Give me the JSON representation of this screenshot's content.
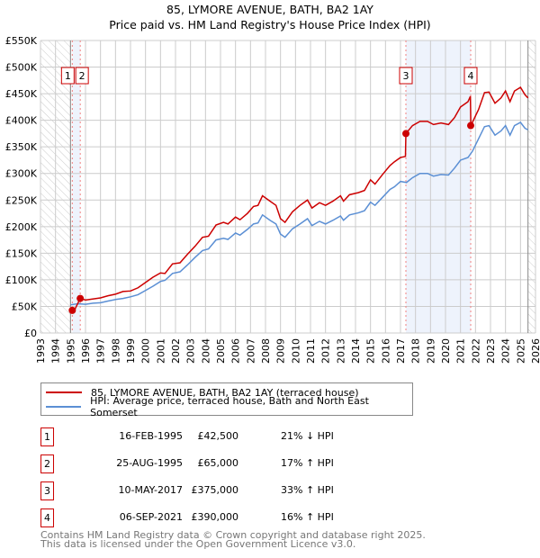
{
  "chart_data": {
    "type": "line",
    "title": "85, LYMORE AVENUE, BATH, BA2 1AY",
    "subtitle": "Price paid vs. HM Land Registry's House Price Index (HPI)",
    "xlim": [
      1993,
      2026
    ],
    "ylim": [
      0,
      550000
    ],
    "x_ticks": [
      "1993",
      "1994",
      "1995",
      "1996",
      "1997",
      "1998",
      "1999",
      "2000",
      "2001",
      "2002",
      "2003",
      "2004",
      "2005",
      "2006",
      "2007",
      "2008",
      "2009",
      "2010",
      "2011",
      "2012",
      "2013",
      "2014",
      "2015",
      "2016",
      "2017",
      "2018",
      "2019",
      "2020",
      "2021",
      "2022",
      "2023",
      "2024",
      "2025",
      "2026"
    ],
    "y_ticks": [
      "£0",
      "£50K",
      "£100K",
      "£150K",
      "£200K",
      "£250K",
      "£300K",
      "£350K",
      "£400K",
      "£450K",
      "£500K",
      "£550K"
    ],
    "grid": true,
    "series": [
      {
        "name": "85, LYMORE AVENUE, BATH, BA2 1AY (terraced house)",
        "color": "#cc0000",
        "unit": "thousand GBP",
        "points": [
          [
            1995.12,
            42.5
          ],
          [
            1995.3,
            45
          ],
          [
            1995.65,
            65
          ],
          [
            1996,
            62
          ],
          [
            1997,
            66
          ],
          [
            1997.5,
            70
          ],
          [
            1998,
            73
          ],
          [
            1998.5,
            78
          ],
          [
            1999,
            79
          ],
          [
            1999.5,
            85
          ],
          [
            2000,
            95
          ],
          [
            2000.5,
            105
          ],
          [
            2001,
            113
          ],
          [
            2001.3,
            112
          ],
          [
            2001.8,
            130
          ],
          [
            2002.3,
            132
          ],
          [
            2002.8,
            148
          ],
          [
            2003.3,
            163
          ],
          [
            2003.8,
            180
          ],
          [
            2004.2,
            182
          ],
          [
            2004.7,
            203
          ],
          [
            2005.2,
            208
          ],
          [
            2005.5,
            205
          ],
          [
            2006,
            218
          ],
          [
            2006.3,
            213
          ],
          [
            2006.8,
            225
          ],
          [
            2007.2,
            238
          ],
          [
            2007.5,
            240
          ],
          [
            2007.8,
            258
          ],
          [
            2008.3,
            248
          ],
          [
            2008.7,
            240
          ],
          [
            2009.0,
            215
          ],
          [
            2009.3,
            208
          ],
          [
            2009.8,
            228
          ],
          [
            2010.3,
            240
          ],
          [
            2010.8,
            250
          ],
          [
            2011.1,
            235
          ],
          [
            2011.6,
            245
          ],
          [
            2012.0,
            240
          ],
          [
            2012.5,
            248
          ],
          [
            2013,
            258
          ],
          [
            2013.2,
            248
          ],
          [
            2013.6,
            260
          ],
          [
            2014.2,
            264
          ],
          [
            2014.6,
            268
          ],
          [
            2015,
            288
          ],
          [
            2015.3,
            280
          ],
          [
            2015.8,
            298
          ],
          [
            2016.3,
            315
          ],
          [
            2016.6,
            322
          ],
          [
            2017.0,
            330
          ],
          [
            2017.33,
            332
          ],
          [
            2017.36,
            375
          ],
          [
            2017.8,
            390
          ],
          [
            2018.3,
            398
          ],
          [
            2018.8,
            398
          ],
          [
            2019.2,
            392
          ],
          [
            2019.7,
            395
          ],
          [
            2020.2,
            392
          ],
          [
            2020.6,
            405
          ],
          [
            2021,
            425
          ],
          [
            2021.5,
            435
          ],
          [
            2021.66,
            445
          ],
          [
            2021.69,
            390
          ],
          [
            2022.2,
            420
          ],
          [
            2022.6,
            452
          ],
          [
            2022.9,
            453
          ],
          [
            2023.3,
            432
          ],
          [
            2023.7,
            442
          ],
          [
            2024,
            455
          ],
          [
            2024.3,
            435
          ],
          [
            2024.6,
            455
          ],
          [
            2025,
            462
          ],
          [
            2025.3,
            448
          ],
          [
            2025.5,
            442
          ]
        ]
      },
      {
        "name": "HPI: Average price, terraced house, Bath and North East Somerset",
        "color": "#5b8fd4",
        "unit": "thousand GBP",
        "points": [
          [
            1995.0,
            53
          ],
          [
            1995.5,
            55
          ],
          [
            1996,
            54
          ],
          [
            1996.5,
            56
          ],
          [
            1997,
            57
          ],
          [
            1997.5,
            60
          ],
          [
            1998,
            63
          ],
          [
            1998.5,
            65
          ],
          [
            1999,
            68
          ],
          [
            1999.5,
            72
          ],
          [
            2000,
            80
          ],
          [
            2000.5,
            88
          ],
          [
            2001,
            97
          ],
          [
            2001.3,
            99
          ],
          [
            2001.8,
            112
          ],
          [
            2002.3,
            115
          ],
          [
            2002.8,
            128
          ],
          [
            2003.3,
            142
          ],
          [
            2003.8,
            155
          ],
          [
            2004.2,
            158
          ],
          [
            2004.7,
            175
          ],
          [
            2005.2,
            178
          ],
          [
            2005.5,
            176
          ],
          [
            2006,
            188
          ],
          [
            2006.3,
            184
          ],
          [
            2006.8,
            195
          ],
          [
            2007.2,
            205
          ],
          [
            2007.5,
            207
          ],
          [
            2007.8,
            222
          ],
          [
            2008.3,
            212
          ],
          [
            2008.7,
            205
          ],
          [
            2009.0,
            186
          ],
          [
            2009.3,
            180
          ],
          [
            2009.8,
            196
          ],
          [
            2010.3,
            205
          ],
          [
            2010.8,
            215
          ],
          [
            2011.1,
            202
          ],
          [
            2011.6,
            210
          ],
          [
            2012.0,
            205
          ],
          [
            2012.5,
            212
          ],
          [
            2013,
            220
          ],
          [
            2013.2,
            212
          ],
          [
            2013.6,
            222
          ],
          [
            2014.2,
            226
          ],
          [
            2014.6,
            230
          ],
          [
            2015,
            246
          ],
          [
            2015.3,
            240
          ],
          [
            2015.8,
            255
          ],
          [
            2016.3,
            270
          ],
          [
            2016.6,
            275
          ],
          [
            2017,
            285
          ],
          [
            2017.4,
            283
          ],
          [
            2017.8,
            292
          ],
          [
            2018.3,
            300
          ],
          [
            2018.8,
            300
          ],
          [
            2019.2,
            295
          ],
          [
            2019.7,
            298
          ],
          [
            2020.2,
            297
          ],
          [
            2020.6,
            310
          ],
          [
            2021,
            325
          ],
          [
            2021.5,
            330
          ],
          [
            2021.8,
            342
          ],
          [
            2022.2,
            365
          ],
          [
            2022.6,
            388
          ],
          [
            2022.9,
            390
          ],
          [
            2023.3,
            372
          ],
          [
            2023.7,
            380
          ],
          [
            2024,
            390
          ],
          [
            2024.3,
            372
          ],
          [
            2024.6,
            390
          ],
          [
            2025,
            396
          ],
          [
            2025.3,
            385
          ],
          [
            2025.5,
            382
          ]
        ]
      }
    ],
    "data_range": [
      1995.0,
      2025.5
    ],
    "sales": [
      {
        "label": "1",
        "x": 1995.12,
        "value": 42.5
      },
      {
        "label": "2",
        "x": 1995.65,
        "value": 65
      },
      {
        "label": "3",
        "x": 2017.36,
        "value": 375
      },
      {
        "label": "4",
        "x": 2021.68,
        "value": 390
      }
    ],
    "shaded_ranges": [
      [
        1995.12,
        1995.65
      ],
      [
        2017.36,
        2021.68
      ]
    ]
  },
  "legend": {
    "property": "85, LYMORE AVENUE, BATH, BA2 1AY (terraced house)",
    "hpi": "HPI: Average price, terraced house, Bath and North East Somerset"
  },
  "transactions": [
    {
      "num": "1",
      "date": "16-FEB-1995",
      "price": "£42,500",
      "pct": "21% ↓ HPI"
    },
    {
      "num": "2",
      "date": "25-AUG-1995",
      "price": "£65,000",
      "pct": "17% ↑ HPI"
    },
    {
      "num": "3",
      "date": "10-MAY-2017",
      "price": "£375,000",
      "pct": "33% ↑ HPI"
    },
    {
      "num": "4",
      "date": "06-SEP-2021",
      "price": "£390,000",
      "pct": "16% ↑ HPI"
    }
  ],
  "footer": {
    "line1": "Contains HM Land Registry data © Crown copyright and database right 2025.",
    "line2": "This data is licensed under the Open Government Licence v3.0."
  }
}
